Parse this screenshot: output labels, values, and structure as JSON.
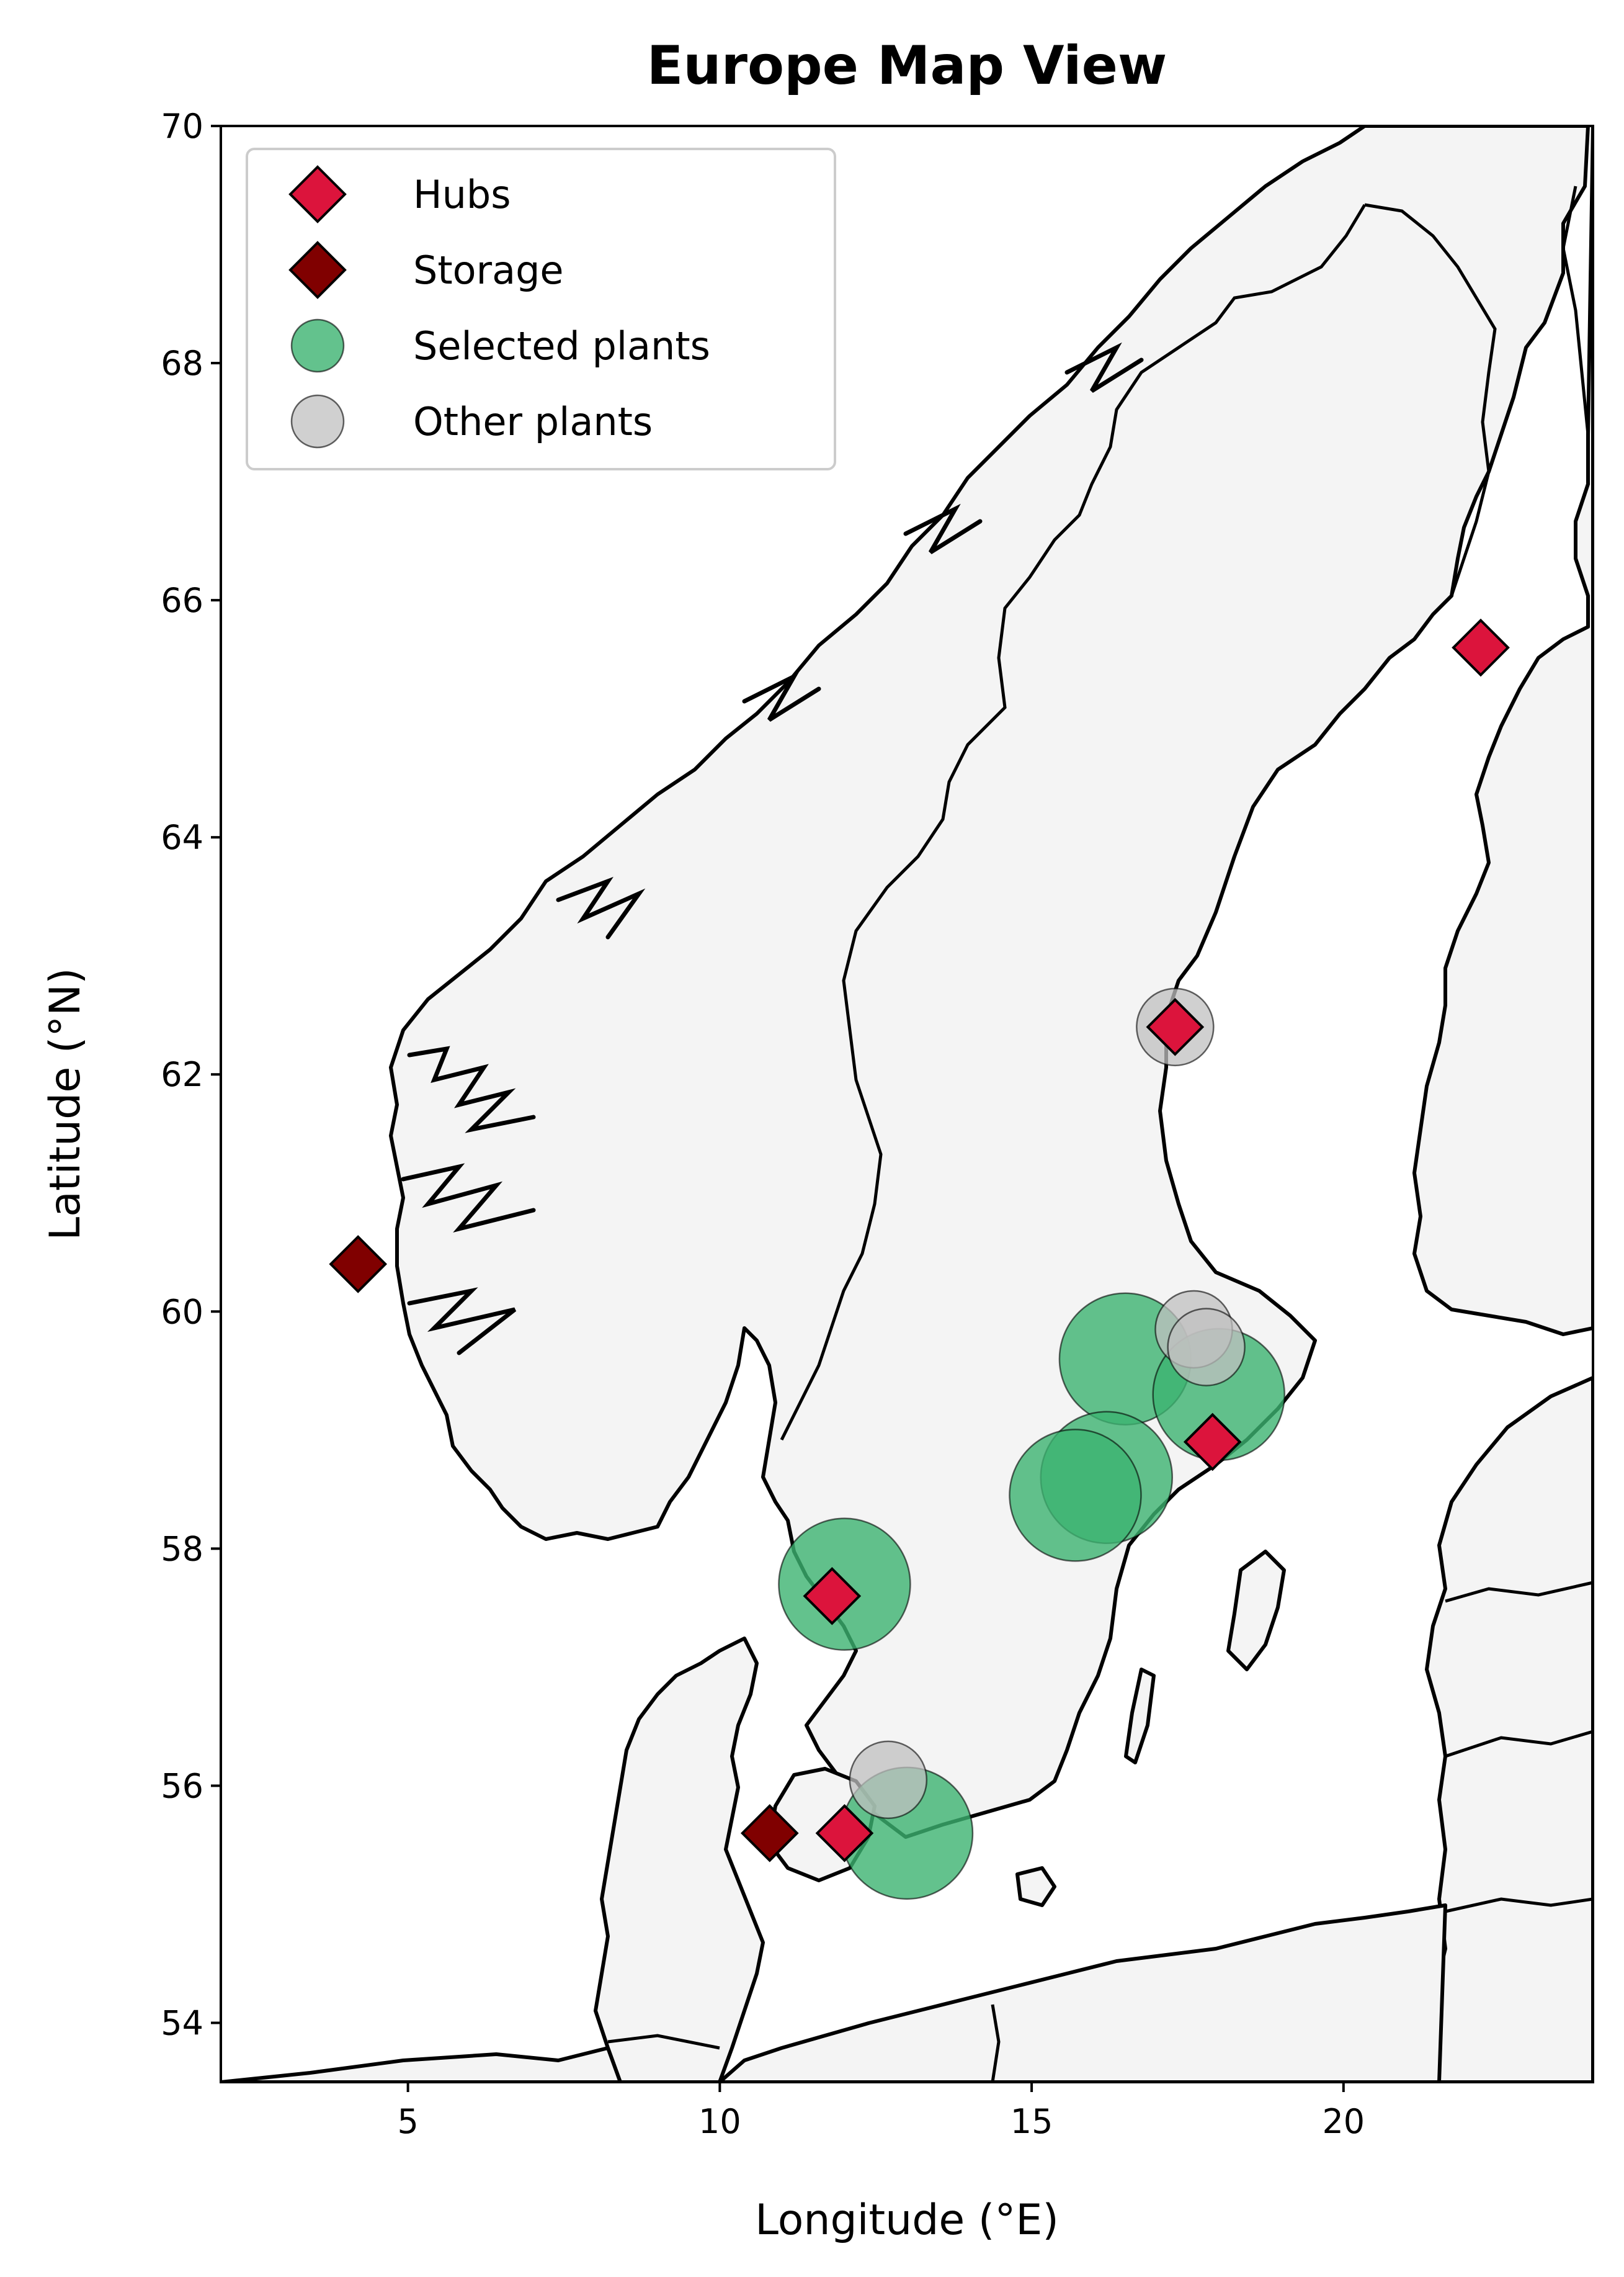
{
  "chart_data": {
    "type": "scatter",
    "title": "Europe Map View",
    "xlabel": "Longitude (°E)",
    "ylabel": "Latitude (°N)",
    "xlim": [
      2.0,
      24.0
    ],
    "ylim": [
      53.5,
      70.0
    ],
    "xticks": [
      5,
      10,
      15,
      20
    ],
    "yticks": [
      54,
      56,
      58,
      60,
      62,
      64,
      66,
      68,
      70
    ],
    "grid": false,
    "legend_position": "top-left",
    "series": [
      {
        "name": "Hubs",
        "marker": "diamond",
        "color": "#dc143c",
        "points": [
          {
            "lon": 22.2,
            "lat": 65.6
          },
          {
            "lon": 17.3,
            "lat": 62.4
          },
          {
            "lon": 17.9,
            "lat": 58.9
          },
          {
            "lon": 11.8,
            "lat": 57.6
          },
          {
            "lon": 12.0,
            "lat": 55.6
          }
        ]
      },
      {
        "name": "Storage",
        "marker": "diamond",
        "color": "#800000",
        "points": [
          {
            "lon": 4.2,
            "lat": 60.4
          },
          {
            "lon": 10.8,
            "lat": 55.6
          }
        ]
      },
      {
        "name": "Selected plants",
        "marker": "circle",
        "color": "#3cb371",
        "points": [
          {
            "lon": 16.5,
            "lat": 59.6
          },
          {
            "lon": 18.0,
            "lat": 59.3
          },
          {
            "lon": 16.2,
            "lat": 58.6
          },
          {
            "lon": 15.7,
            "lat": 58.45
          },
          {
            "lon": 12.0,
            "lat": 57.7
          },
          {
            "lon": 13.0,
            "lat": 55.6
          }
        ]
      },
      {
        "name": "Other plants",
        "marker": "circle",
        "color": "#c0c0c0",
        "points": [
          {
            "lon": 17.3,
            "lat": 62.4
          },
          {
            "lon": 17.6,
            "lat": 59.85
          },
          {
            "lon": 17.8,
            "lat": 59.7
          },
          {
            "lon": 12.7,
            "lat": 56.05
          }
        ]
      }
    ]
  }
}
